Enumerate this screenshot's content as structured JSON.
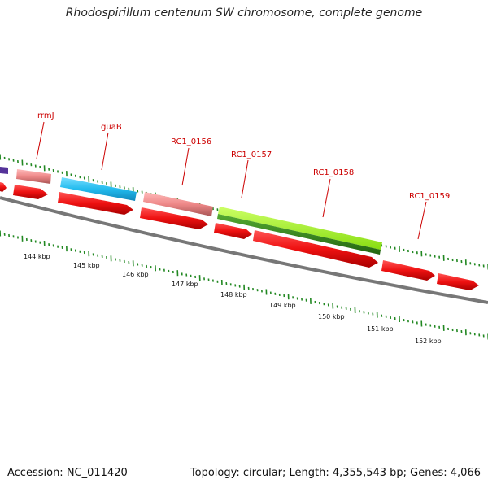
{
  "title": "Rhodospirillum centenum SW chromosome, complete genome",
  "accession_text": "Accession: NC_011420",
  "summary_text": "Topology: circular; Length: 4,355,543 bp; Genes: 4,066",
  "gene_labels": [
    "rrmJ",
    "guaB",
    "RC1_0156",
    "RC1_0157",
    "RC1_0158",
    "RC1_0159"
  ],
  "kbp_labels": [
    "144 kbp",
    "145 kbp",
    "146 kbp",
    "147 kbp",
    "148 kbp",
    "149 kbp",
    "150 kbp",
    "151 kbp",
    "152 kbp"
  ],
  "colors": {
    "cds_red": "#ee1111",
    "rrmJ_pink": "#ee8888",
    "guaB_cyan": "#22bbee",
    "RC1_0157_green": "#88dd11",
    "RC1_0157_darkgreen": "#338822",
    "violet": "#553399",
    "backbone_gray": "#777777",
    "tick_green": "#228822",
    "label_red": "#cc0000"
  }
}
